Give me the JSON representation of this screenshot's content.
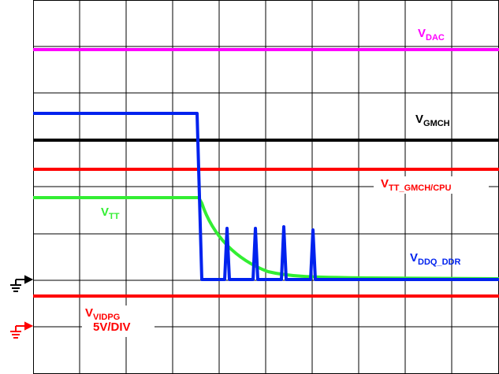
{
  "labels": {
    "dac": {
      "main": "V",
      "sub": "DAC"
    },
    "gmch": {
      "main": "V",
      "sub": "GMCH"
    },
    "tt_gmch_cpu": {
      "main": "V",
      "sub": "TT_GMCH/CPU"
    },
    "tt": {
      "main": "V",
      "sub": "TT"
    },
    "ddq_ddr": {
      "main": "V",
      "sub": "DDQ_DDR"
    },
    "vidpg": {
      "main": "V",
      "sub": "VIDPG"
    },
    "scale": "5V/DIV"
  }
}
